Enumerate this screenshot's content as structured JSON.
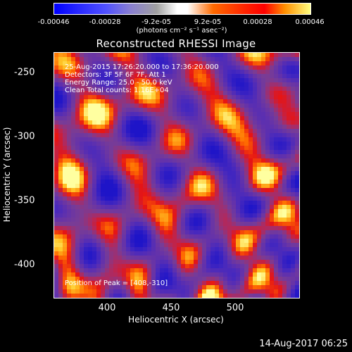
{
  "colorbar": {
    "tick_labels": [
      "-0.00046",
      "-0.00028",
      "-9.2e-05",
      "9.2e-05",
      "0.00028",
      "0.00046"
    ],
    "unit_label": "(photons cm⁻² s⁻¹ asec⁻²)",
    "range": [
      -0.00046,
      0.00046
    ]
  },
  "chart_data": {
    "type": "heatmap",
    "title": "Reconstructed RHESSI Image",
    "xlabel": "Heliocentric X (arcsec)",
    "ylabel": "Heliocentric Y (arcsec)",
    "xlim": [
      360,
      548
    ],
    "ylim": [
      -428,
      -238
    ],
    "x_ticks": [
      "400",
      "450",
      "500"
    ],
    "y_ticks": [
      "-250",
      "-300",
      "-350",
      "-400"
    ],
    "annotations": {
      "time": "25-Aug-2015 17:26:20.000 to 17:36:20.000",
      "detectors": "Detectors: 3F 5F 6F 7F, Att 1",
      "energy": "Energy Range: 25.0 - 50.0 keV",
      "method": "Clean     Total counts: 1.16E+04",
      "peak": "Position of Peak = [408,-310]"
    },
    "peak_position": [
      408,
      -310
    ],
    "colors": {
      "min": "#0000ff",
      "mid": "#7a4fb0",
      "max": "#ffff80"
    }
  },
  "footer": {
    "timestamp": "14-Aug-2017 06:25"
  }
}
